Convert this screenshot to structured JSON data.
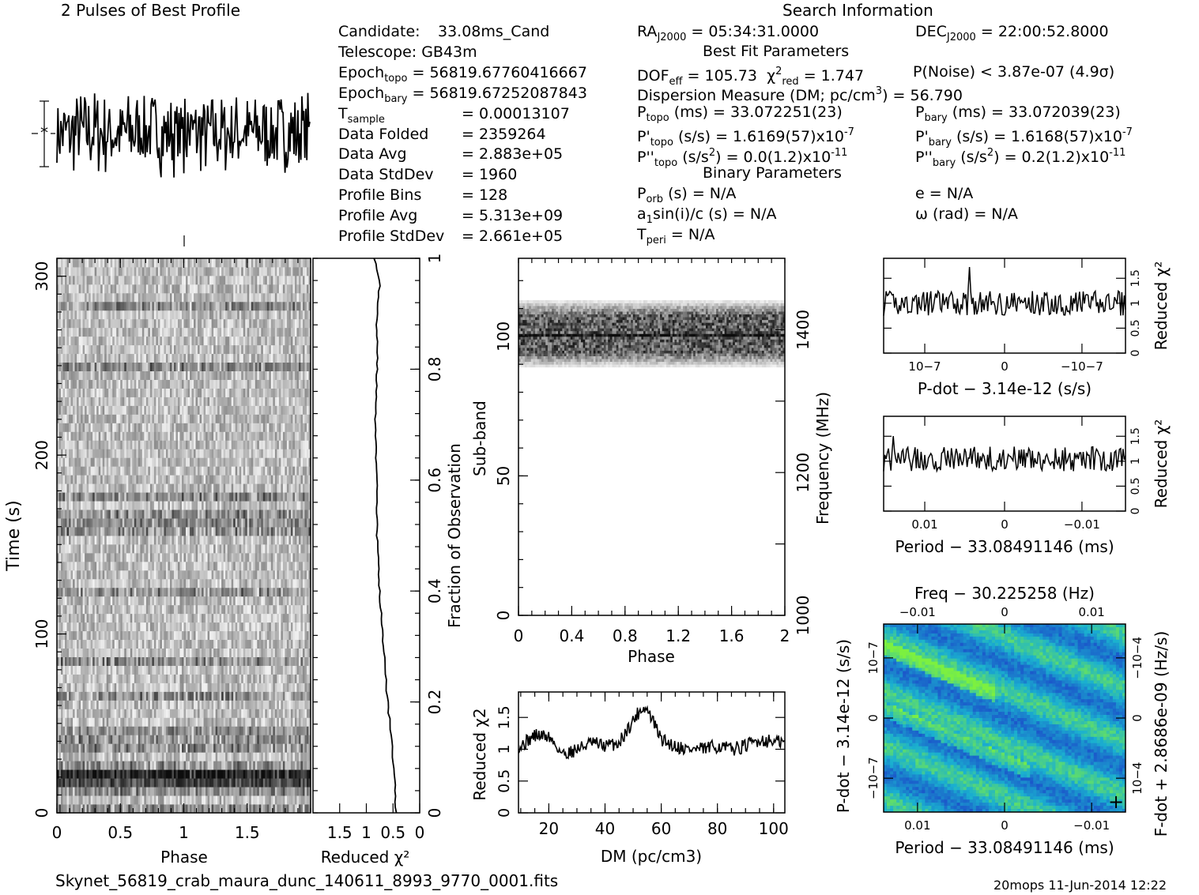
{
  "header": {
    "profile_title": "2 Pulses of Best Profile",
    "search_info_title": "Search Information",
    "best_fit_title": "Best Fit Parameters",
    "binary_title": "Binary Parameters"
  },
  "candidate_info": [
    {
      "label": "Candidate:",
      "value": "33.08ms_Cand"
    },
    {
      "label": "Telescope:",
      "value": "GB43m"
    },
    {
      "label": "Epoch",
      "label_sub": "topo",
      "value": "= 56819.67760416667"
    },
    {
      "label": "Epoch",
      "label_sub": "bary",
      "value": "= 56819.67252087843"
    },
    {
      "label": "T",
      "label_sub": "sample",
      "value": "=   0.00013107"
    },
    {
      "label": "Data Folded",
      "value": "=   2359264"
    },
    {
      "label": "Data Avg",
      "value": "=   2.883e+05"
    },
    {
      "label": "Data StdDev",
      "value": "=   1960"
    },
    {
      "label": "Profile Bins",
      "value": "=   128"
    },
    {
      "label": "Profile Avg",
      "value": "=   5.313e+09"
    },
    {
      "label": "Profile StdDev",
      "value": "=   2.661e+05"
    }
  ],
  "search_info": {
    "ra_label": "RA",
    "ra_sub": "J2000",
    "ra_value": "= 05:34:31.0000",
    "dec_label": "DEC",
    "dec_sub": "J2000",
    "dec_value": "= 22:00:52.8000",
    "dof_label": "DOF",
    "dof_sub": "eff",
    "dof_value": "= 105.73",
    "chi_label": "χ",
    "chi_sup": "2",
    "chi_sub": "red",
    "chi_value": "= 1.747",
    "pnoise": "P(Noise) < 3.87e-07   (4.9σ)",
    "dm_line_a": "Dispersion Measure (DM; pc/cm",
    "dm_line_sup": "3",
    "dm_line_b": ") = 56.790",
    "ptopo_label": "P",
    "ptopo_sub": "topo",
    "ptopo_value": "(ms) =  33.072251(23)",
    "pbary_label": "P",
    "pbary_sub": "bary",
    "pbary_value": "(ms) =  33.072039(23)",
    "pdtopo_label": "P'",
    "pdtopo_sub": "topo",
    "pdtopo_value": "(s/s) =  1.6169(57)x10",
    "pdtopo_exp": "-7",
    "pdbary_label": "P'",
    "pdbary_sub": "bary",
    "pdbary_value": "(s/s) =  1.6168(57)x10",
    "pdbary_exp": "-7",
    "pddtopo_label": "P''",
    "pddtopo_sub": "topo",
    "pddtopo_value": "(s/s",
    "pddtopo_sup": "2",
    "pddtopo_value2": ") = 0.0(1.2)x10",
    "pddtopo_exp": "-11",
    "pddbary_label": "P''",
    "pddbary_sub": "bary",
    "pddbary_value": "(s/s",
    "pddbary_sup": "2",
    "pddbary_value2": ") =  0.2(1.2)x10",
    "pddbary_exp": "-11",
    "porb_label": "P",
    "porb_sub": "orb",
    "porb_value": "(s) = N/A",
    "e_value": "e = N/A",
    "asini_label": "a",
    "asini_sub": "1",
    "asini_value": "sin(i)/c (s) = N/A",
    "omega_value": "ω (rad) = N/A",
    "tperi_label": "T",
    "tperi_sub": "peri",
    "tperi_value": "= N/A"
  },
  "footer": {
    "filename": "Skynet_56819_crab_maura_dunc_140611_8993_9770_0001.fits",
    "timestamp": "20mops 11-Jun-2014 12:22"
  },
  "colors": {
    "trace": "#000000",
    "map_low": "#1c3cc8",
    "map_mid": "#1ab0d0",
    "map_high": "#7cf040"
  },
  "chart_data": [
    {
      "id": "profile",
      "type": "line",
      "title": "2 Pulses of Best Profile",
      "description_values": {
        "x_range": [
          0,
          2
        ],
        "cycles": 2,
        "noise_like": true
      },
      "error_bar_label": "±1σ with asterisk at mean",
      "axes": "none"
    },
    {
      "id": "time-phase",
      "type": "heatmap",
      "xlabel": "Phase",
      "ylabel": "Time (s)",
      "xlim": [
        0,
        2
      ],
      "ylim": [
        0,
        310
      ],
      "x_ticks": [
        "0",
        "0.5",
        "1",
        "1.5"
      ],
      "y_ticks": [
        "0",
        "100",
        "200",
        "300"
      ],
      "right_label": "Fraction of Observation",
      "right_ticks": [
        "0",
        "0.2",
        "0.4",
        "0.6",
        "0.8",
        "1"
      ]
    },
    {
      "id": "time-chi2",
      "type": "line",
      "xlabel": "Reduced χ2",
      "x_ticks": [
        "1.5",
        "1",
        "0.5",
        "0"
      ],
      "xlim": [
        2,
        0
      ],
      "ylim": [
        0,
        1
      ],
      "fraction": [
        0,
        0.04,
        0.1,
        0.2,
        0.3,
        0.4,
        0.5,
        0.6,
        0.7,
        0.8,
        0.9,
        0.95,
        1.0
      ],
      "chi2": [
        0.45,
        0.46,
        0.5,
        0.6,
        0.68,
        0.75,
        0.8,
        0.8,
        0.83,
        0.8,
        0.8,
        0.75,
        0.85
      ]
    },
    {
      "id": "subband-phase",
      "type": "heatmap",
      "xlabel": "Phase",
      "ylabel": "Sub-band",
      "xlim": [
        0,
        2
      ],
      "ylim": [
        0,
        128
      ],
      "x_ticks": [
        "0",
        "0.4",
        "0.8",
        "1.2",
        "1.6",
        "2"
      ],
      "y_ticks": [
        "0",
        "50",
        "100"
      ],
      "right_label": "Frequency (MHz)",
      "right_ticks": [
        "1000",
        "1200",
        "1400"
      ],
      "signal_subbands": [
        88,
        113
      ]
    },
    {
      "id": "dm-chi2",
      "type": "line",
      "xlabel": "DM (pc/cm3)",
      "ylabel": "Reduced χ2",
      "xlim": [
        9.2,
        104
      ],
      "ylim": [
        0,
        1.9
      ],
      "x_ticks": [
        "20",
        "40",
        "60",
        "80",
        "100"
      ],
      "y_ticks": [
        "0",
        "0.5",
        "1",
        "1.5"
      ],
      "dm": [
        10,
        15,
        20,
        25,
        30,
        35,
        40,
        45,
        50,
        53,
        55,
        57,
        60,
        65,
        70,
        75,
        80,
        85,
        90,
        95,
        100,
        104
      ],
      "chi2": [
        1.05,
        1.22,
        1.2,
        0.92,
        1.0,
        1.1,
        1.05,
        1.1,
        1.45,
        1.65,
        1.62,
        1.45,
        1.15,
        1.05,
        1.0,
        1.0,
        1.05,
        1.0,
        1.05,
        1.15,
        1.12,
        1.1
      ]
    },
    {
      "id": "pdot-chi2",
      "type": "line",
      "xlabel": "P-dot − 3.14e-12 (s/s)",
      "ylabel": "Reduced χ2",
      "xlim": [
        -1.6e-07,
        1.6e-07
      ],
      "ylim": [
        0,
        1.9
      ],
      "x_ticks": [
        "10−7",
        "0",
        "−10−7"
      ],
      "y_ticks": [
        "0",
        "0.5",
        "1",
        "1.5"
      ],
      "level": 1.0,
      "spike_at": -0.29,
      "spike_value": 1.65
    },
    {
      "id": "period-chi2",
      "type": "line",
      "xlabel": "Period − 33.08491146 (ms)",
      "ylabel": "Reduced χ2",
      "xlim": [
        0.016,
        -0.016
      ],
      "ylim": [
        0,
        1.9
      ],
      "x_ticks": [
        "0.01",
        "0",
        "−0.01"
      ],
      "y_ticks": [
        "0",
        "0.5",
        "1",
        "1.5"
      ],
      "level": 1.05,
      "spike_at": -0.92,
      "spike_value": 1.7
    },
    {
      "id": "p-pdot",
      "type": "heatmap",
      "title": "Freq − 30.225258 (Hz)",
      "xlabel": "Period − 33.08491146 (ms)",
      "ylabel": "P-dot − 3.14e-12 (s/s)",
      "right_label": "F-dot + 2.8686e-09 (Hz/s)",
      "x_ticks": [
        "0.01",
        "0",
        "−0.01"
      ],
      "top_ticks": [
        "−0.01",
        "0",
        "0.01"
      ],
      "y_ticks": [
        "10−7",
        "0",
        "−10−7"
      ],
      "right_ticks": [
        "−10−4",
        "0",
        "10−4"
      ],
      "best_marker": "plus"
    }
  ]
}
